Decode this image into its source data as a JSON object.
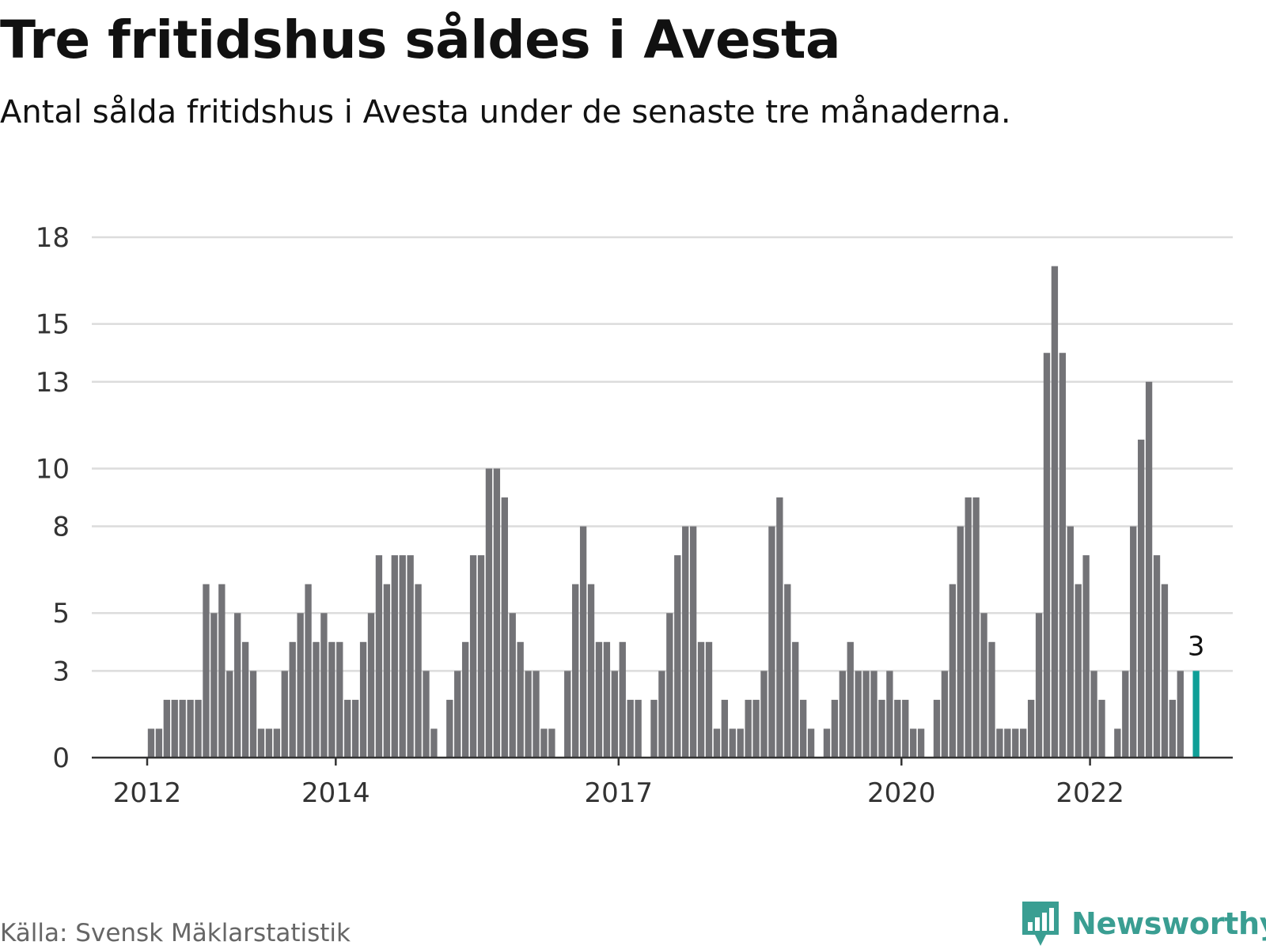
{
  "title": "Tre fritidshus såldes i Avesta",
  "subtitle": "Antal sålda fritidshus i Avesta under de senaste tre månaderna.",
  "source": "Källa: Svensk Mäklarstatistik",
  "brand": {
    "name": "Newsworthy",
    "icon": "newsworthy-logo-icon"
  },
  "colors": {
    "bar": "#737377",
    "highlight": "#0f9f97",
    "grid": "#dcdcdc",
    "axis": "#333333"
  },
  "chart_data": {
    "type": "bar",
    "title": "Tre fritidshus såldes i Avesta",
    "subtitle": "Antal sålda fritidshus i Avesta under de senaste tre månaderna.",
    "xlabel": "",
    "ylabel": "",
    "ylim": [
      0,
      18
    ],
    "y_ticks": [
      {
        "value": 0,
        "label": "0"
      },
      {
        "value": 3,
        "label": "3"
      },
      {
        "value": 5,
        "label": "5"
      },
      {
        "value": 8,
        "label": "8"
      },
      {
        "value": 10,
        "label": "10"
      },
      {
        "value": 13,
        "label": "13"
      },
      {
        "value": 15,
        "label": "15"
      },
      {
        "value": 18,
        "label": "18"
      }
    ],
    "x_ticks": [
      {
        "date": "2012-01",
        "label": "2012"
      },
      {
        "date": "2014-01",
        "label": "2014"
      },
      {
        "date": "2017-01",
        "label": "2017"
      },
      {
        "date": "2020-01",
        "label": "2020"
      },
      {
        "date": "2022-01",
        "label": "2022"
      }
    ],
    "grid": true,
    "legend": "none",
    "start": "2012-01",
    "values": [
      1,
      1,
      2,
      2,
      2,
      2,
      2,
      6,
      5,
      6,
      3,
      5,
      4,
      3,
      1,
      1,
      1,
      3,
      4,
      5,
      6,
      4,
      5,
      4,
      4,
      2,
      2,
      4,
      5,
      7,
      6,
      7,
      7,
      7,
      6,
      3,
      1,
      null,
      2,
      3,
      4,
      7,
      7,
      10,
      10,
      9,
      5,
      4,
      3,
      3,
      1,
      1,
      null,
      3,
      6,
      8,
      6,
      4,
      4,
      3,
      4,
      2,
      2,
      null,
      2,
      3,
      5,
      7,
      8,
      8,
      4,
      4,
      1,
      2,
      1,
      1,
      2,
      2,
      3,
      8,
      9,
      6,
      4,
      2,
      1,
      null,
      1,
      2,
      3,
      4,
      3,
      3,
      3,
      2,
      3,
      2,
      2,
      1,
      1,
      null,
      2,
      3,
      6,
      8,
      9,
      9,
      5,
      4,
      1,
      1,
      1,
      1,
      2,
      5,
      14,
      17,
      14,
      8,
      6,
      7,
      3,
      2,
      null,
      1,
      3,
      8,
      11,
      13,
      7,
      6,
      2,
      3
    ],
    "highlight": {
      "date": "2023-02",
      "value": 3,
      "label": "3"
    }
  }
}
